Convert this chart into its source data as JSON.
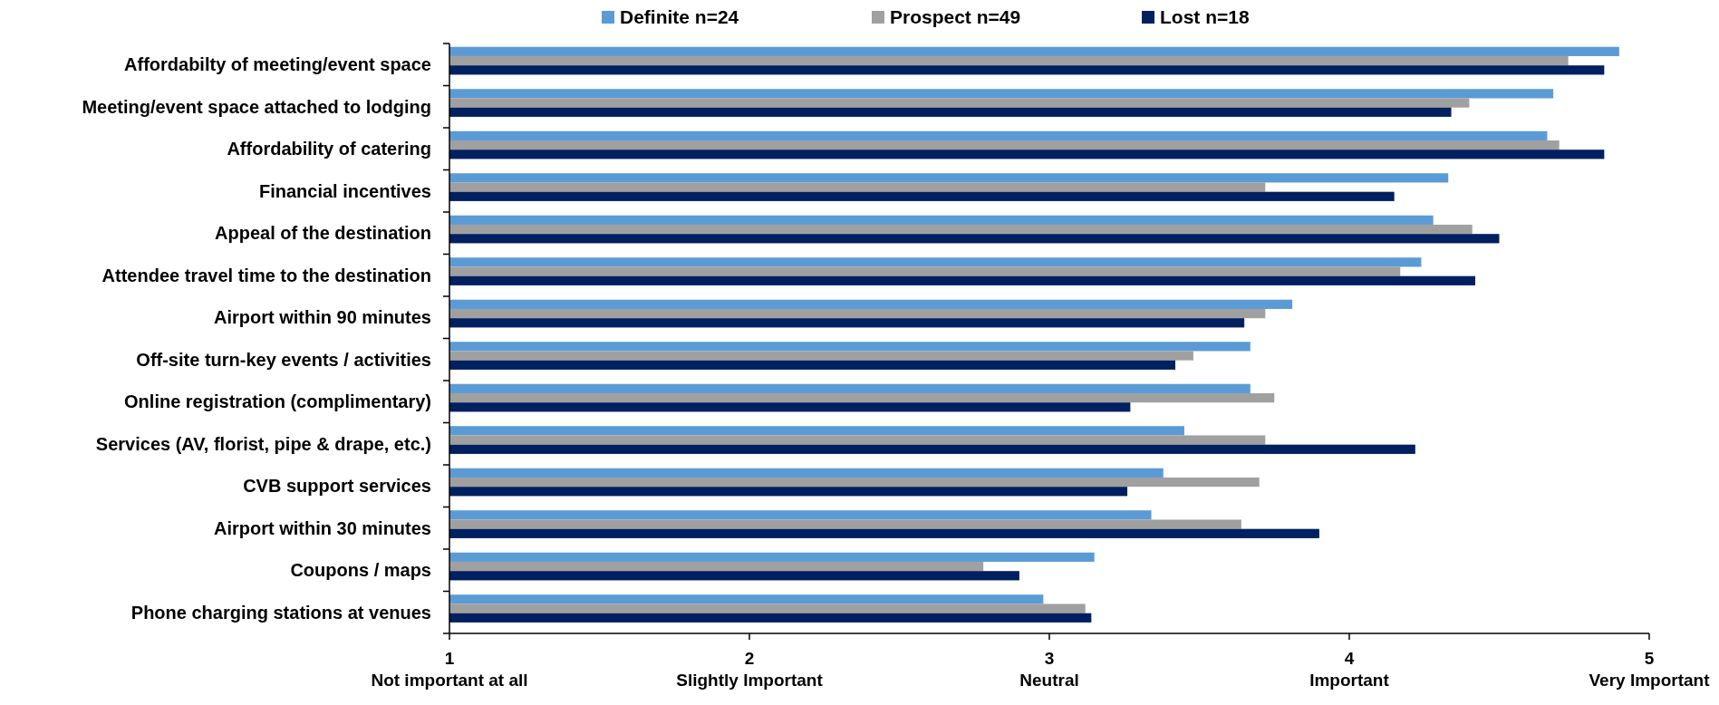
{
  "chart_data": {
    "type": "bar",
    "orientation": "horizontal",
    "categories": [
      "Affordabilty of meeting/event space",
      "Meeting/event space attached to lodging",
      "Affordability of catering",
      "Financial incentives",
      "Appeal of the destination",
      "Attendee travel time to the destination",
      "Airport within 90 minutes",
      "Off-site turn-key events / activities",
      "Online registration (complimentary)",
      "Services (AV, florist, pipe & drape, etc.)",
      "CVB support services",
      "Airport within 30 minutes",
      "Coupons / maps",
      "Phone charging stations at venues"
    ],
    "series": [
      {
        "name": "Definite n=24",
        "color": "#5b9bd5",
        "values": [
          4.9,
          4.68,
          4.66,
          4.33,
          4.28,
          4.24,
          3.81,
          3.67,
          3.67,
          3.45,
          3.38,
          3.34,
          3.15,
          2.98
        ]
      },
      {
        "name": "Prospect n=49",
        "color": "#a0a0a0",
        "values": [
          4.73,
          4.4,
          4.7,
          3.72,
          4.41,
          4.17,
          3.72,
          3.48,
          3.75,
          3.72,
          3.7,
          3.64,
          2.78,
          3.12
        ]
      },
      {
        "name": "Lost n=18",
        "color": "#002060",
        "values": [
          4.85,
          4.34,
          4.85,
          4.15,
          4.5,
          4.42,
          3.65,
          3.42,
          3.27,
          4.22,
          3.26,
          3.9,
          2.9,
          3.14
        ]
      }
    ],
    "xlim": [
      1,
      5
    ],
    "xticks": [
      {
        "value": 1,
        "label": "1\nNot important at all"
      },
      {
        "value": 2,
        "label": "2\nSlightly Important"
      },
      {
        "value": 3,
        "label": "3\nNeutral"
      },
      {
        "value": 4,
        "label": "4\nImportant"
      },
      {
        "value": 5,
        "label": "5\nVery Important"
      }
    ],
    "legend": "top",
    "grid": false
  }
}
